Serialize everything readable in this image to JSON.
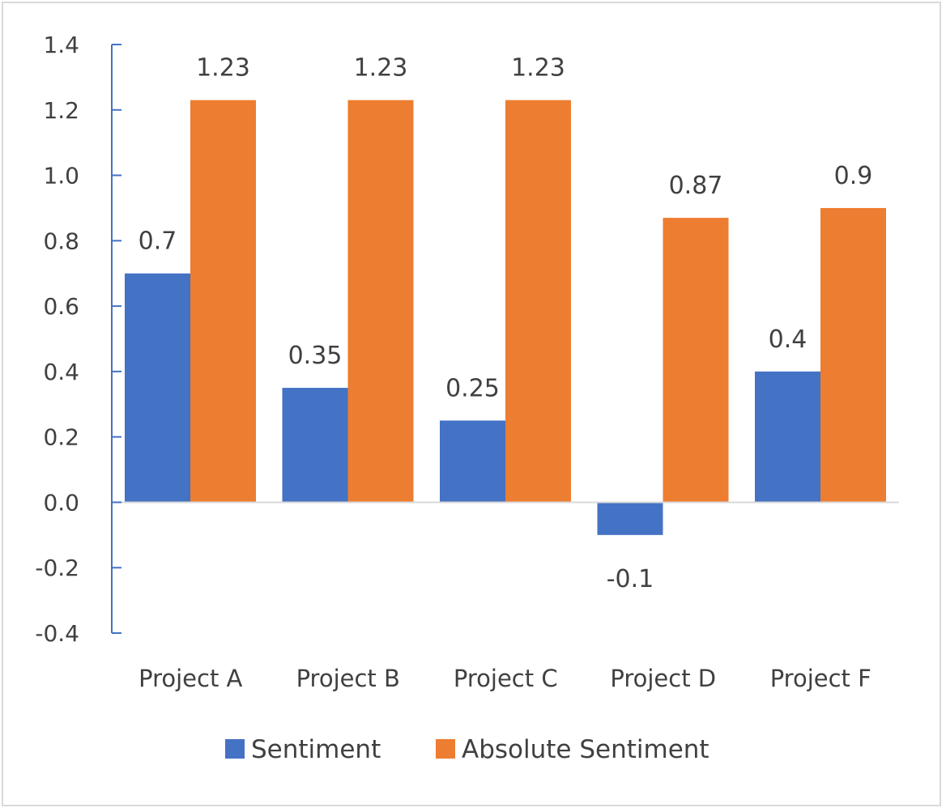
{
  "chart_data": {
    "type": "bar",
    "categories": [
      "Project A",
      "Project B",
      "Project C",
      "Project D",
      "Project F"
    ],
    "series": [
      {
        "name": "Sentiment",
        "values": [
          0.7,
          0.35,
          0.25,
          -0.1,
          0.4
        ],
        "labels": [
          "0.7",
          "0.35",
          "0.25",
          "-0.1",
          "0.4"
        ]
      },
      {
        "name": "Absolute Sentiment",
        "values": [
          1.23,
          1.23,
          1.23,
          0.87,
          0.9
        ],
        "labels": [
          "1.23",
          "1.23",
          "1.23",
          "0.87",
          "0.9"
        ]
      }
    ],
    "ylim": [
      -0.4,
      1.4
    ],
    "yticks": [
      -0.4,
      -0.2,
      0.0,
      0.2,
      0.4,
      0.6,
      0.8,
      1.0,
      1.2,
      1.4
    ],
    "ytick_labels": [
      "-0.4",
      "-0.2",
      "0.0",
      "0.2",
      "0.4",
      "0.6",
      "0.8",
      "1.0",
      "1.2",
      "1.4"
    ],
    "title": "",
    "xlabel": "",
    "ylabel": "",
    "grid": false,
    "legend_position": "bottom"
  },
  "colors": {
    "sentiment": "#4472c4",
    "absolute_sentiment": "#ed7d31",
    "axis": "#4472c4",
    "zero_line": "#d9d9d9"
  }
}
